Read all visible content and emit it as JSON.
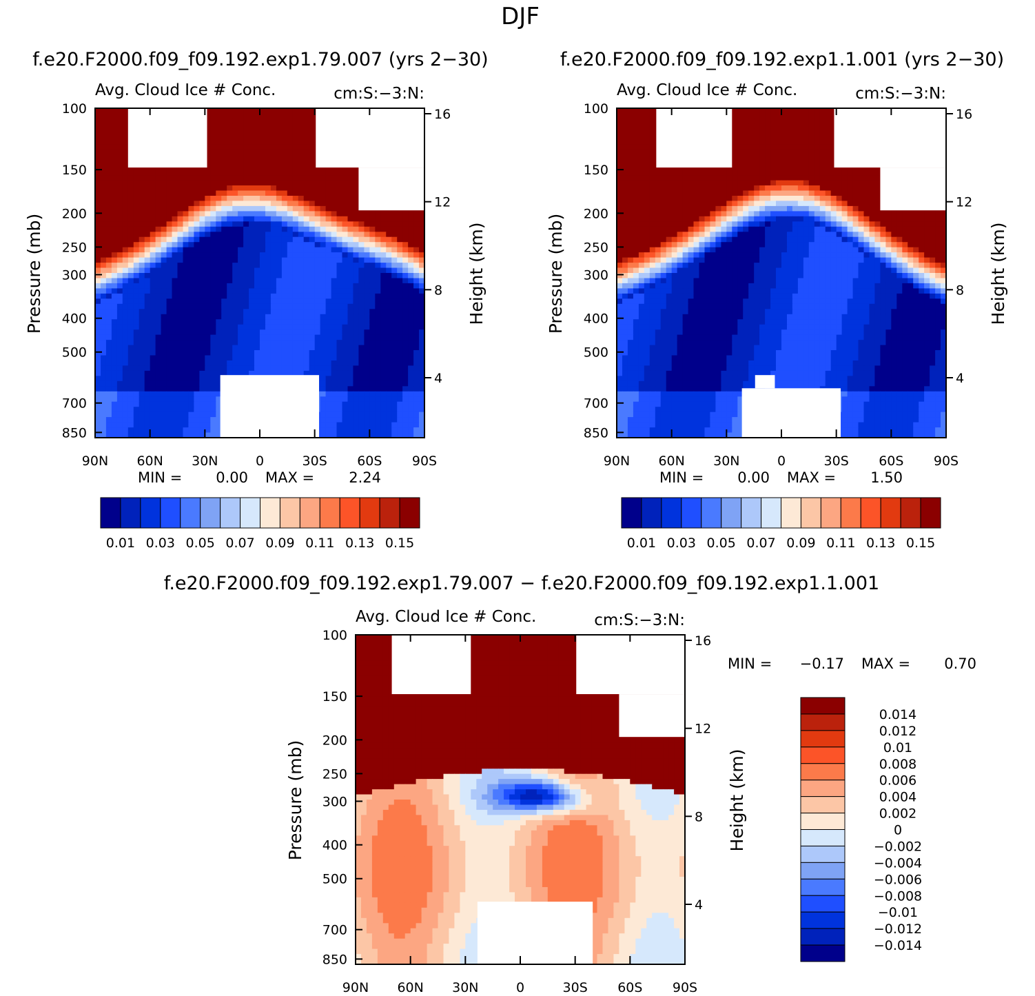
{
  "figure_title": "DJF",
  "palette_abs": [
    "#00008b",
    "#0022bb",
    "#0033dd",
    "#1f4fff",
    "#4a7aff",
    "#7fa3f5",
    "#adc8fa",
    "#d6e8fc",
    "#fde9d6",
    "#fcc6a6",
    "#fca682",
    "#fc7a4a",
    "#fc5428",
    "#e23a10",
    "#bb220c",
    "#8b0000"
  ],
  "palette_diff": [
    "#00008b",
    "#0022bb",
    "#0033dd",
    "#1f4fff",
    "#4a7aff",
    "#7fa3f5",
    "#adc8fa",
    "#d6e8fc",
    "#fde9d6",
    "#fcc6a6",
    "#fca682",
    "#fc7a4a",
    "#fc5428",
    "#e23a10",
    "#bb220c",
    "#8b0000"
  ],
  "chart_data": [
    {
      "type": "heatmap",
      "title": "f.e20.F2000.f09_f09.192.exp1.79.007 (yrs 2−30)",
      "left_label": "Avg. Cloud Ice # Conc.",
      "right_label": "cm:S:−3:N:",
      "ylabel": "Pressure (mb)",
      "ylabel_right": "Height (km)",
      "x_ticks": [
        "90N",
        "60N",
        "30N",
        "0",
        "30S",
        "60S",
        "90S"
      ],
      "y_ticks": [
        "100",
        "150",
        "200",
        "250",
        "300",
        "400",
        "500",
        "700",
        "850"
      ],
      "height_ticks": [
        "16",
        "12",
        "8",
        "4"
      ],
      "min_label": "MIN =",
      "min_value": "0.00",
      "max_label": "MAX =",
      "max_value": "2.24",
      "colorbar_labels": [
        "0.01",
        "0.03",
        "0.05",
        "0.07",
        "0.09",
        "0.11",
        "0.13",
        "0.15"
      ]
    },
    {
      "type": "heatmap",
      "title": "f.e20.F2000.f09_f09.192.exp1.1.001 (yrs 2−30)",
      "left_label": "Avg. Cloud Ice # Conc.",
      "right_label": "cm:S:−3:N:",
      "ylabel": "Pressure (mb)",
      "ylabel_right": "Height (km)",
      "x_ticks": [
        "90N",
        "60N",
        "30N",
        "0",
        "30S",
        "60S",
        "90S"
      ],
      "y_ticks": [
        "100",
        "150",
        "200",
        "250",
        "300",
        "400",
        "500",
        "700",
        "850"
      ],
      "height_ticks": [
        "16",
        "12",
        "8",
        "4"
      ],
      "min_label": "MIN =",
      "min_value": "0.00",
      "max_label": "MAX =",
      "max_value": "1.50",
      "colorbar_labels": [
        "0.01",
        "0.03",
        "0.05",
        "0.07",
        "0.09",
        "0.11",
        "0.13",
        "0.15"
      ]
    },
    {
      "type": "heatmap",
      "title": "f.e20.F2000.f09_f09.192.exp1.79.007 − f.e20.F2000.f09_f09.192.exp1.1.001",
      "left_label": "Avg. Cloud Ice # Conc.",
      "right_label": "cm:S:−3:N:",
      "ylabel": "Pressure (mb)",
      "ylabel_right": "Height (km)",
      "x_ticks": [
        "90N",
        "60N",
        "30N",
        "0",
        "30S",
        "60S",
        "90S"
      ],
      "y_ticks": [
        "100",
        "150",
        "200",
        "250",
        "300",
        "400",
        "500",
        "700",
        "850"
      ],
      "height_ticks": [
        "16",
        "12",
        "8",
        "4"
      ],
      "min_label": "MIN =",
      "min_value": "−0.17",
      "max_label": "MAX =",
      "max_value": "0.70",
      "colorbar_labels": [
        "0.014",
        "0.012",
        "0.01",
        "0.008",
        "0.006",
        "0.004",
        "0.002",
        "0",
        "−0.002",
        "−0.004",
        "−0.006",
        "−0.008",
        "−0.01",
        "−0.012",
        "−0.014"
      ]
    }
  ]
}
